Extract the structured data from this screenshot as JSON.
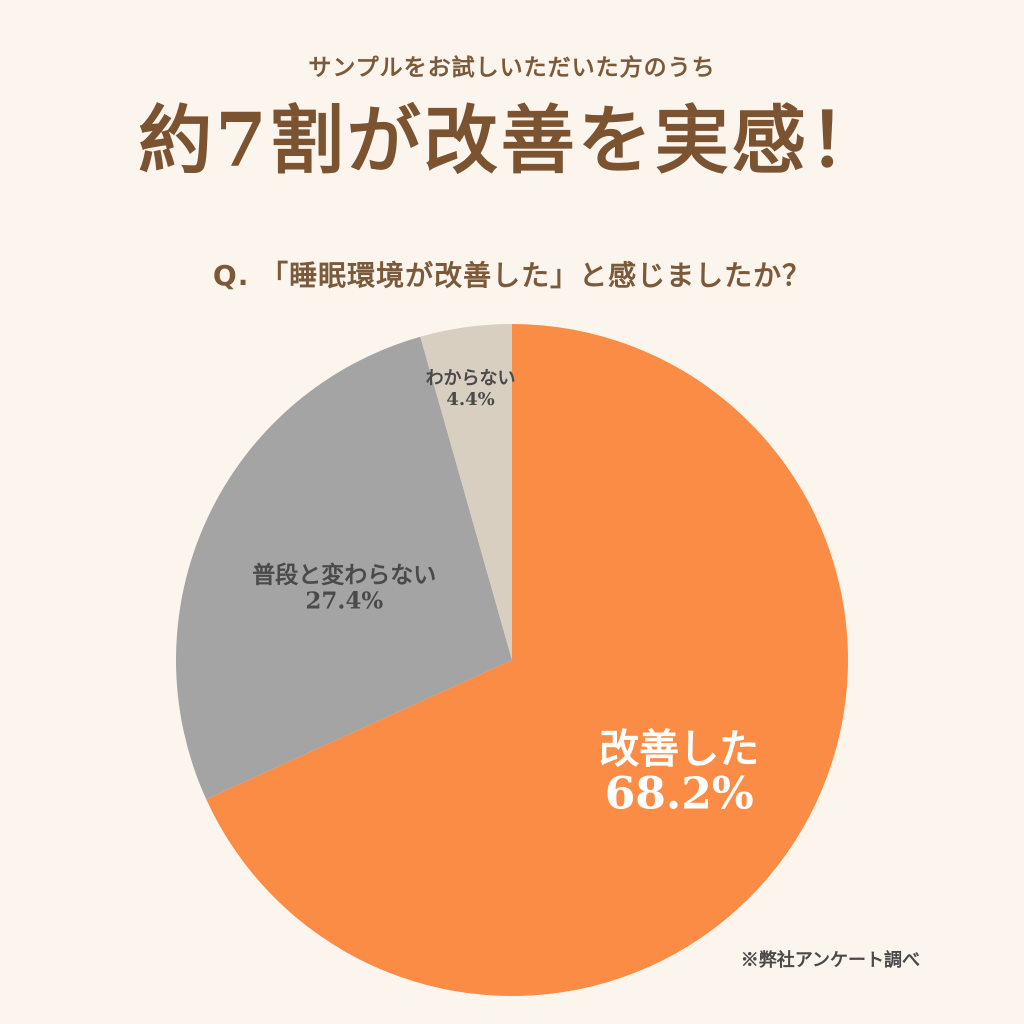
{
  "header": {
    "subtitle": "サンプルをお試しいただいた方のうち",
    "title": "約7割が改善を実感！",
    "question": "Q. 「睡眠環境が改善した」と感じましたか？"
  },
  "chart_data": {
    "type": "pie",
    "slices": [
      {
        "label": "改善した",
        "value": 68.2,
        "value_label": "68.2%",
        "color": "#fa8c46",
        "text_color": "#ffffff"
      },
      {
        "label": "普段と変わらない",
        "value": 27.4,
        "value_label": "27.4%",
        "color": "#a4a4a4",
        "text_color": "#4a4a4a"
      },
      {
        "label": "わからない",
        "value": 4.4,
        "value_label": "4.4%",
        "color": "#d8cfc1",
        "text_color": "#4a4a4a"
      }
    ],
    "start": "12 o'clock",
    "direction": "clockwise"
  },
  "footer": {
    "source": "※弊社アンケート調べ"
  }
}
